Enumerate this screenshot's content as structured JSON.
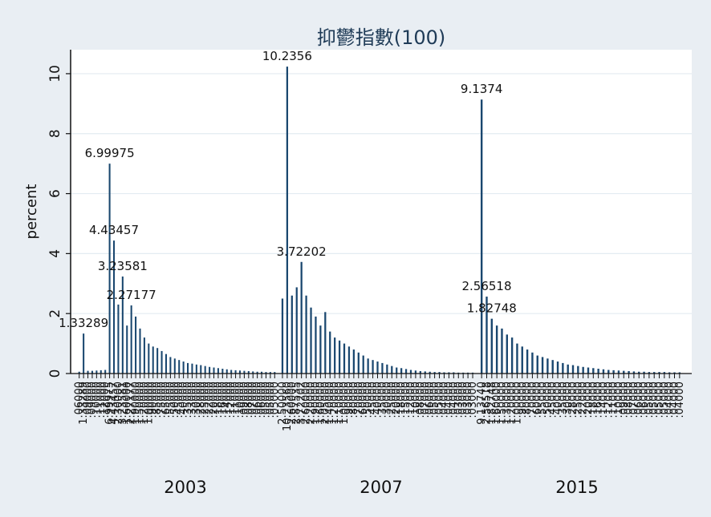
{
  "chart_data": {
    "type": "bar",
    "title": "抑鬱指數(100)",
    "ylabel": "percent",
    "xlabel": "",
    "ylim": [
      0,
      10.8
    ],
    "yticks": [
      0,
      2,
      4,
      6,
      8,
      10
    ],
    "grid": true,
    "groups": [
      {
        "label": "2003",
        "values": [
          0.06,
          1.33289,
          0.09,
          0.09,
          0.1,
          0.11,
          0.12,
          6.99975,
          4.43457,
          2.3,
          3.23581,
          1.6,
          2.27177,
          1.9,
          1.5,
          1.2,
          1.0,
          0.9,
          0.85,
          0.75,
          0.65,
          0.55,
          0.5,
          0.45,
          0.4,
          0.35,
          0.33,
          0.3,
          0.28,
          0.25,
          0.22,
          0.2,
          0.18,
          0.16,
          0.14,
          0.12,
          0.11,
          0.1,
          0.09,
          0.08,
          0.07,
          0.06,
          0.06,
          0.05,
          0.05,
          0.05
        ],
        "labeled": [
          {
            "i": 1,
            "text": "1.33289"
          },
          {
            "i": 7,
            "text": "6.99975"
          },
          {
            "i": 8,
            "text": "4.43457"
          },
          {
            "i": 10,
            "text": "3.23581"
          },
          {
            "i": 12,
            "text": "2.27177"
          }
        ]
      },
      {
        "label": "2007",
        "values": [
          2.5,
          10.2356,
          2.6,
          2.87535,
          3.72202,
          2.6,
          2.2,
          1.9,
          1.6,
          2.05,
          1.4,
          1.2,
          1.1,
          1.0,
          0.9,
          0.8,
          0.7,
          0.6,
          0.5,
          0.45,
          0.4,
          0.35,
          0.3,
          0.25,
          0.2,
          0.18,
          0.15,
          0.12,
          0.1,
          0.08,
          0.07,
          0.06,
          0.05,
          0.05,
          0.04,
          0.04,
          0.04,
          0.03,
          0.03,
          0.03,
          0.03
        ],
        "labeled": [
          {
            "i": 1,
            "text": "10.2356"
          },
          {
            "i": 4,
            "text": "3.72202"
          }
        ]
      },
      {
        "label": "2015",
        "values": [
          9.1374,
          2.56518,
          1.82748,
          1.6,
          1.5,
          1.3,
          1.2,
          1.0,
          0.9,
          0.8,
          0.7,
          0.6,
          0.55,
          0.5,
          0.45,
          0.4,
          0.35,
          0.3,
          0.28,
          0.25,
          0.22,
          0.2,
          0.18,
          0.16,
          0.14,
          0.12,
          0.11,
          0.1,
          0.09,
          0.08,
          0.07,
          0.06,
          0.06,
          0.05,
          0.05,
          0.05,
          0.05,
          0.04,
          0.04,
          0.04
        ],
        "labeled": [
          {
            "i": 0,
            "text": "9.1374"
          },
          {
            "i": 1,
            "text": "2.56518"
          },
          {
            "i": 2,
            "text": "1.82748"
          }
        ]
      }
    ]
  }
}
